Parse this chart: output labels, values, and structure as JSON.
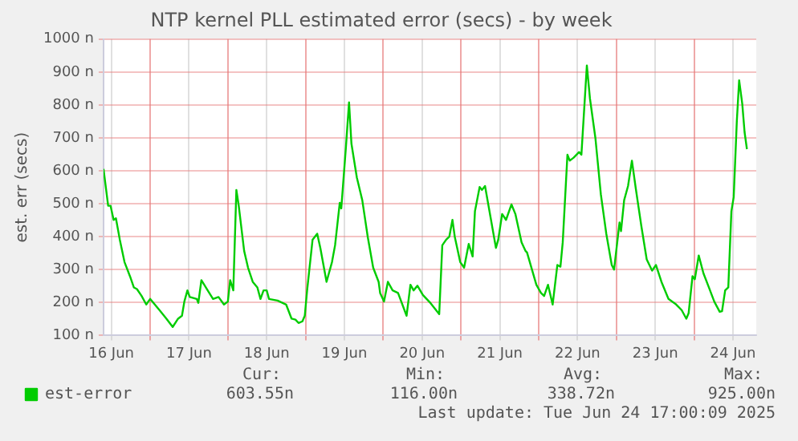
{
  "chart_data": {
    "type": "line",
    "title": "NTP kernel PLL estimated error (secs) - by week",
    "ylabel": "est. err (secs)",
    "xlim": [
      "2025-06-16T09:36",
      "2025-06-24T19:12"
    ],
    "xticks": [
      {
        "value": "2025-06-16T12:00",
        "label": "16 Jun"
      },
      {
        "value": "2025-06-17T00:00",
        "label": null
      },
      {
        "value": "2025-06-17T12:00",
        "label": "17 Jun"
      },
      {
        "value": "2025-06-18T00:00",
        "label": null
      },
      {
        "value": "2025-06-18T12:00",
        "label": "18 Jun"
      },
      {
        "value": "2025-06-19T00:00",
        "label": null
      },
      {
        "value": "2025-06-19T12:00",
        "label": "19 Jun"
      },
      {
        "value": "2025-06-20T00:00",
        "label": null
      },
      {
        "value": "2025-06-20T12:00",
        "label": "20 Jun"
      },
      {
        "value": "2025-06-21T00:00",
        "label": null
      },
      {
        "value": "2025-06-21T12:00",
        "label": "21 Jun"
      },
      {
        "value": "2025-06-22T00:00",
        "label": null
      },
      {
        "value": "2025-06-22T12:00",
        "label": "22 Jun"
      },
      {
        "value": "2025-06-23T00:00",
        "label": null
      },
      {
        "value": "2025-06-23T12:00",
        "label": "23 Jun"
      },
      {
        "value": "2025-06-24T00:00",
        "label": null
      },
      {
        "value": "2025-06-24T12:00",
        "label": "24 Jun"
      }
    ],
    "ylim": [
      100,
      1000
    ],
    "yticks": [
      {
        "value": 100,
        "label": "100 n"
      },
      {
        "value": 200,
        "label": "200 n"
      },
      {
        "value": 300,
        "label": "300 n"
      },
      {
        "value": 400,
        "label": "400 n"
      },
      {
        "value": 500,
        "label": "500 n"
      },
      {
        "value": 600,
        "label": "600 n"
      },
      {
        "value": 700,
        "label": "700 n"
      },
      {
        "value": 800,
        "label": "800 n"
      },
      {
        "value": 900,
        "label": "900 n"
      },
      {
        "value": 1000,
        "label": "1000 n"
      }
    ],
    "grid": true,
    "legend": "bottom",
    "marker": "none",
    "line_style": "solid",
    "series": [
      {
        "name": "est-error",
        "color": "#00cc00",
        "x": [
          "2025-06-16T09:36",
          "2025-06-16T11:02",
          "2025-06-16T11:46",
          "2025-06-16T12:43",
          "2025-06-16T13:26",
          "2025-06-16T14:38",
          "2025-06-16T16:05",
          "2025-06-16T17:46",
          "2025-06-16T18:58",
          "2025-06-16T19:55",
          "2025-06-16T21:22",
          "2025-06-16T22:48",
          "2025-06-17T00:00",
          "2025-06-17T01:26",
          "2025-06-17T02:53",
          "2025-06-17T05:02",
          "2025-06-17T06:58",
          "2025-06-17T08:38",
          "2025-06-17T09:50",
          "2025-06-17T10:34",
          "2025-06-17T11:31",
          "2025-06-17T12:14",
          "2025-06-17T14:24",
          "2025-06-17T14:53",
          "2025-06-17T15:50",
          "2025-06-17T17:46",
          "2025-06-17T19:26",
          "2025-06-17T21:07",
          "2025-06-17T22:48",
          "2025-06-18T00:00",
          "2025-06-18T00:43",
          "2025-06-18T01:41",
          "2025-06-18T02:38",
          "2025-06-18T03:22",
          "2025-06-18T05:02",
          "2025-06-18T06:14",
          "2025-06-18T07:41",
          "2025-06-18T09:07",
          "2025-06-18T10:05",
          "2025-06-18T11:02",
          "2025-06-18T12:00",
          "2025-06-18T12:43",
          "2025-06-18T15:22",
          "2025-06-18T18:00",
          "2025-06-18T19:41",
          "2025-06-18T20:53",
          "2025-06-18T21:50",
          "2025-06-18T23:02",
          "2025-06-18T23:46",
          "2025-06-19T00:29",
          "2025-06-19T02:10",
          "2025-06-19T03:36",
          "2025-06-19T04:34",
          "2025-06-19T06:29",
          "2025-06-19T08:10",
          "2025-06-19T09:07",
          "2025-06-19T10:34",
          "2025-06-19T11:02",
          "2025-06-19T12:29",
          "2025-06-19T13:26",
          "2025-06-19T14:10",
          "2025-06-19T15:50",
          "2025-06-19T17:31",
          "2025-06-19T19:12",
          "2025-06-19T20:53",
          "2025-06-19T22:34",
          "2025-06-19T23:02",
          "2025-06-20T00:14",
          "2025-06-20T01:26",
          "2025-06-20T02:53",
          "2025-06-20T04:34",
          "2025-06-20T07:12",
          "2025-06-20T08:24",
          "2025-06-20T09:22",
          "2025-06-20T10:34",
          "2025-06-20T12:14",
          "2025-06-20T14:38",
          "2025-06-20T17:17",
          "2025-06-20T18:14",
          "2025-06-20T19:26",
          "2025-06-20T20:24",
          "2025-06-20T21:22",
          "2025-06-20T22:05",
          "2025-06-20T23:46",
          "2025-06-21T00:58",
          "2025-06-21T02:24",
          "2025-06-21T03:36",
          "2025-06-21T04:19",
          "2025-06-21T05:46",
          "2025-06-21T06:29",
          "2025-06-21T07:26",
          "2025-06-21T09:07",
          "2025-06-21T10:48",
          "2025-06-21T11:31",
          "2025-06-21T12:43",
          "2025-06-21T13:55",
          "2025-06-21T15:36",
          "2025-06-21T16:48",
          "2025-06-21T18:43",
          "2025-06-21T19:55",
          "2025-06-21T20:24",
          "2025-06-21T23:17",
          "2025-06-22T00:43",
          "2025-06-22T01:41",
          "2025-06-22T02:53",
          "2025-06-22T04:19",
          "2025-06-22T05:46",
          "2025-06-22T06:43",
          "2025-06-22T07:26",
          "2025-06-22T08:53",
          "2025-06-22T09:36",
          "2025-06-22T10:48",
          "2025-06-22T12:29",
          "2025-06-22T13:12",
          "2025-06-22T14:53",
          "2025-06-22T15:50",
          "2025-06-22T17:31",
          "2025-06-22T19:12",
          "2025-06-22T20:53",
          "2025-06-22T22:34",
          "2025-06-22T23:17",
          "2025-06-23T00:58",
          "2025-06-23T01:26",
          "2025-06-23T02:24",
          "2025-06-23T03:36",
          "2025-06-23T04:48",
          "2025-06-23T06:00",
          "2025-06-23T07:41",
          "2025-06-23T09:22",
          "2025-06-23T11:02",
          "2025-06-23T12:14",
          "2025-06-23T13:55",
          "2025-06-23T16:05",
          "2025-06-23T18:29",
          "2025-06-23T20:10",
          "2025-06-23T21:36",
          "2025-06-23T22:19",
          "2025-06-23T23:31",
          "2025-06-24T00:14",
          "2025-06-24T01:26",
          "2025-06-24T02:53",
          "2025-06-24T04:34",
          "2025-06-24T06:14",
          "2025-06-24T07:55",
          "2025-06-24T08:38",
          "2025-06-24T09:36",
          "2025-06-24T10:34",
          "2025-06-24T11:31",
          "2025-06-24T12:14",
          "2025-06-24T13:12",
          "2025-06-24T13:55",
          "2025-06-24T14:53",
          "2025-06-24T15:36",
          "2025-06-24T16:19"
        ],
        "values": [
          606,
          494,
          494,
          451,
          456,
          391,
          323,
          280,
          246,
          241,
          220,
          194,
          211,
          194,
          177,
          151,
          126,
          151,
          160,
          203,
          237,
          217,
          211,
          199,
          268,
          237,
          211,
          217,
          194,
          203,
          268,
          237,
          542,
          494,
          357,
          306,
          263,
          246,
          211,
          237,
          237,
          211,
          206,
          194,
          151,
          148,
          138,
          143,
          160,
          237,
          391,
          409,
          366,
          263,
          323,
          374,
          503,
          486,
          674,
          808,
          683,
          580,
          511,
          400,
          306,
          263,
          229,
          203,
          263,
          237,
          229,
          160,
          254,
          237,
          251,
          223,
          198,
          165,
          374,
          391,
          400,
          451,
          400,
          323,
          306,
          378,
          340,
          477,
          551,
          542,
          554,
          460,
          366,
          391,
          469,
          451,
          498,
          469,
          383,
          357,
          352,
          254,
          229,
          220,
          254,
          194,
          314,
          309,
          383,
          649,
          631,
          640,
          657,
          649,
          920,
          820,
          700,
          529,
          409,
          314,
          300,
          443,
          417,
          511,
          554,
          631,
          546,
          434,
          331,
          297,
          314,
          263,
          211,
          194,
          177,
          151,
          168,
          280,
          271,
          343,
          289,
          246,
          203,
          172,
          174,
          237,
          246,
          477,
          520,
          751,
          875,
          803,
          717,
          666
        ]
      }
    ],
    "annotations": [
      "Cur:",
      "603.55n",
      "Min:",
      "116.00n",
      "Avg:",
      "338.72n",
      "Max:",
      "925.00n",
      "Last update: Tue Jun 24 17:00:09 2025"
    ]
  }
}
